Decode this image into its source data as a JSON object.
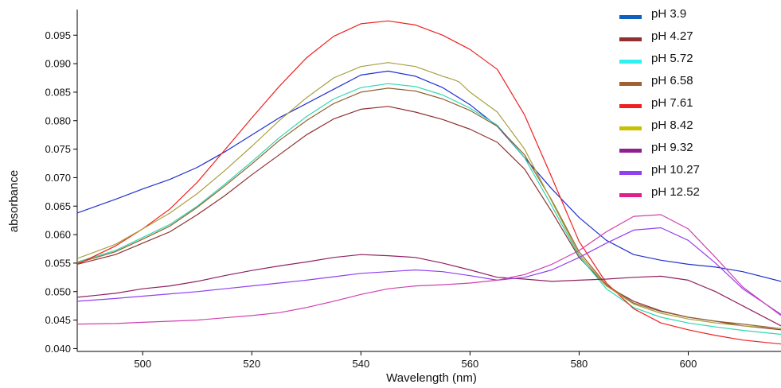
{
  "chart_data": {
    "type": "line",
    "title": "",
    "xlabel": "Wavelength (nm)",
    "ylabel": "absorbance",
    "xlim": [
      488,
      617
    ],
    "ylim": [
      0.0395,
      0.0995
    ],
    "xticks": [
      500,
      520,
      540,
      560,
      580,
      600
    ],
    "yticks": [
      "0.040",
      "0.045",
      "0.050",
      "0.055",
      "0.060",
      "0.065",
      "0.070",
      "0.075",
      "0.080",
      "0.085",
      "0.090",
      "0.095"
    ],
    "grid": false,
    "legend_position": "top-right",
    "series": [
      {
        "name": "pH  3.9",
        "color": "#2030d0",
        "legend_color": "#1060c0",
        "points": [
          [
            488,
            0.0638
          ],
          [
            495,
            0.0662
          ],
          [
            500,
            0.068
          ],
          [
            505,
            0.0697
          ],
          [
            510,
            0.0718
          ],
          [
            515,
            0.0745
          ],
          [
            520,
            0.0775
          ],
          [
            525,
            0.0805
          ],
          [
            530,
            0.083
          ],
          [
            535,
            0.0855
          ],
          [
            540,
            0.088
          ],
          [
            545,
            0.0887
          ],
          [
            550,
            0.0878
          ],
          [
            555,
            0.0858
          ],
          [
            560,
            0.0828
          ],
          [
            565,
            0.079
          ],
          [
            570,
            0.0735
          ],
          [
            575,
            0.068
          ],
          [
            580,
            0.063
          ],
          [
            585,
            0.059
          ],
          [
            590,
            0.0565
          ],
          [
            595,
            0.0555
          ],
          [
            600,
            0.0548
          ],
          [
            605,
            0.0543
          ],
          [
            610,
            0.0535
          ],
          [
            617,
            0.0518
          ]
        ]
      },
      {
        "name": "pH  4.27",
        "color": "#903030",
        "legend_color": "#903030",
        "points": [
          [
            488,
            0.0548
          ],
          [
            495,
            0.0565
          ],
          [
            500,
            0.0585
          ],
          [
            505,
            0.0605
          ],
          [
            510,
            0.0635
          ],
          [
            515,
            0.0668
          ],
          [
            520,
            0.0705
          ],
          [
            525,
            0.074
          ],
          [
            530,
            0.0775
          ],
          [
            535,
            0.0803
          ],
          [
            540,
            0.082
          ],
          [
            545,
            0.0825
          ],
          [
            550,
            0.0815
          ],
          [
            555,
            0.0802
          ],
          [
            560,
            0.0785
          ],
          [
            565,
            0.0762
          ],
          [
            570,
            0.0715
          ],
          [
            575,
            0.064
          ],
          [
            580,
            0.056
          ],
          [
            585,
            0.051
          ],
          [
            590,
            0.0483
          ],
          [
            595,
            0.0466
          ],
          [
            600,
            0.0455
          ],
          [
            605,
            0.0448
          ],
          [
            610,
            0.044
          ],
          [
            617,
            0.0433
          ]
        ]
      },
      {
        "name": "pH  5.72",
        "color": "#30d8b0",
        "legend_color": "#30f0f0",
        "points": [
          [
            488,
            0.0552
          ],
          [
            495,
            0.0572
          ],
          [
            500,
            0.0595
          ],
          [
            505,
            0.0618
          ],
          [
            510,
            0.065
          ],
          [
            515,
            0.0688
          ],
          [
            520,
            0.0728
          ],
          [
            525,
            0.077
          ],
          [
            530,
            0.0807
          ],
          [
            535,
            0.0838
          ],
          [
            540,
            0.0858
          ],
          [
            545,
            0.0865
          ],
          [
            550,
            0.086
          ],
          [
            555,
            0.0845
          ],
          [
            560,
            0.0822
          ],
          [
            565,
            0.0792
          ],
          [
            570,
            0.0735
          ],
          [
            575,
            0.065
          ],
          [
            580,
            0.0562
          ],
          [
            585,
            0.0505
          ],
          [
            590,
            0.0472
          ],
          [
            595,
            0.0455
          ],
          [
            600,
            0.0445
          ],
          [
            605,
            0.0438
          ],
          [
            610,
            0.0432
          ],
          [
            617,
            0.0425
          ]
        ]
      },
      {
        "name": "pH  6.58",
        "color": "#906030",
        "legend_color": "#a06030",
        "points": [
          [
            488,
            0.055
          ],
          [
            495,
            0.057
          ],
          [
            500,
            0.0592
          ],
          [
            505,
            0.0615
          ],
          [
            510,
            0.0648
          ],
          [
            515,
            0.0685
          ],
          [
            520,
            0.0724
          ],
          [
            525,
            0.0765
          ],
          [
            530,
            0.08
          ],
          [
            535,
            0.083
          ],
          [
            540,
            0.085
          ],
          [
            545,
            0.0857
          ],
          [
            550,
            0.0852
          ],
          [
            555,
            0.0838
          ],
          [
            560,
            0.0818
          ],
          [
            565,
            0.079
          ],
          [
            570,
            0.074
          ],
          [
            575,
            0.066
          ],
          [
            580,
            0.057
          ],
          [
            585,
            0.0512
          ],
          [
            590,
            0.048
          ],
          [
            595,
            0.0465
          ],
          [
            600,
            0.0455
          ],
          [
            605,
            0.0448
          ],
          [
            610,
            0.0443
          ],
          [
            617,
            0.0435
          ]
        ]
      },
      {
        "name": "pH  7.61",
        "color": "#f02020",
        "legend_color": "#f02020",
        "points": [
          [
            488,
            0.0548
          ],
          [
            495,
            0.058
          ],
          [
            500,
            0.061
          ],
          [
            505,
            0.0645
          ],
          [
            510,
            0.0692
          ],
          [
            515,
            0.0748
          ],
          [
            520,
            0.0805
          ],
          [
            525,
            0.086
          ],
          [
            530,
            0.091
          ],
          [
            535,
            0.0948
          ],
          [
            540,
            0.097
          ],
          [
            545,
            0.0975
          ],
          [
            550,
            0.0968
          ],
          [
            555,
            0.095
          ],
          [
            560,
            0.0925
          ],
          [
            565,
            0.089
          ],
          [
            570,
            0.081
          ],
          [
            575,
            0.07
          ],
          [
            580,
            0.0588
          ],
          [
            585,
            0.0515
          ],
          [
            590,
            0.047
          ],
          [
            595,
            0.0445
          ],
          [
            600,
            0.0433
          ],
          [
            605,
            0.0423
          ],
          [
            610,
            0.0415
          ],
          [
            617,
            0.0408
          ]
        ]
      },
      {
        "name": "pH  8.42",
        "color": "#a8a040",
        "legend_color": "#c8c000",
        "points": [
          [
            488,
            0.0558
          ],
          [
            495,
            0.0583
          ],
          [
            500,
            0.061
          ],
          [
            505,
            0.0638
          ],
          [
            510,
            0.0672
          ],
          [
            515,
            0.0712
          ],
          [
            520,
            0.0755
          ],
          [
            525,
            0.08
          ],
          [
            530,
            0.084
          ],
          [
            535,
            0.0875
          ],
          [
            540,
            0.0895
          ],
          [
            545,
            0.0902
          ],
          [
            550,
            0.0895
          ],
          [
            555,
            0.0878
          ],
          [
            557,
            0.0872
          ],
          [
            558,
            0.0868
          ],
          [
            560,
            0.085
          ],
          [
            565,
            0.0815
          ],
          [
            570,
            0.075
          ],
          [
            575,
            0.0658
          ],
          [
            580,
            0.0565
          ],
          [
            585,
            0.051
          ],
          [
            590,
            0.0478
          ],
          [
            595,
            0.0462
          ],
          [
            600,
            0.0452
          ],
          [
            605,
            0.0445
          ],
          [
            610,
            0.044
          ],
          [
            617,
            0.0435
          ]
        ]
      },
      {
        "name": "pH  9.32",
        "color": "#902060",
        "legend_color": "#902090",
        "points": [
          [
            488,
            0.049
          ],
          [
            495,
            0.0497
          ],
          [
            500,
            0.0505
          ],
          [
            505,
            0.051
          ],
          [
            510,
            0.0518
          ],
          [
            515,
            0.0528
          ],
          [
            520,
            0.0537
          ],
          [
            525,
            0.0545
          ],
          [
            530,
            0.0552
          ],
          [
            535,
            0.056
          ],
          [
            540,
            0.0565
          ],
          [
            545,
            0.0563
          ],
          [
            550,
            0.056
          ],
          [
            555,
            0.055
          ],
          [
            560,
            0.0538
          ],
          [
            565,
            0.0525
          ],
          [
            570,
            0.0522
          ],
          [
            575,
            0.0518
          ],
          [
            580,
            0.052
          ],
          [
            585,
            0.0522
          ],
          [
            590,
            0.0525
          ],
          [
            595,
            0.0527
          ],
          [
            600,
            0.052
          ],
          [
            605,
            0.05
          ],
          [
            610,
            0.0475
          ],
          [
            617,
            0.044
          ]
        ]
      },
      {
        "name": "pH  10.27",
        "color": "#9040f0",
        "legend_color": "#9040f0",
        "points": [
          [
            488,
            0.0483
          ],
          [
            495,
            0.0488
          ],
          [
            500,
            0.0492
          ],
          [
            505,
            0.0496
          ],
          [
            510,
            0.05
          ],
          [
            515,
            0.0505
          ],
          [
            520,
            0.051
          ],
          [
            525,
            0.0515
          ],
          [
            530,
            0.052
          ],
          [
            535,
            0.0526
          ],
          [
            540,
            0.0532
          ],
          [
            545,
            0.0535
          ],
          [
            550,
            0.0538
          ],
          [
            555,
            0.0535
          ],
          [
            560,
            0.0528
          ],
          [
            565,
            0.052
          ],
          [
            570,
            0.0525
          ],
          [
            575,
            0.0538
          ],
          [
            580,
            0.056
          ],
          [
            585,
            0.0585
          ],
          [
            590,
            0.0608
          ],
          [
            595,
            0.0612
          ],
          [
            600,
            0.059
          ],
          [
            605,
            0.055
          ],
          [
            610,
            0.0505
          ],
          [
            617,
            0.046
          ]
        ]
      },
      {
        "name": "pH  12.52",
        "color": "#d040b0",
        "legend_color": "#e0208a",
        "points": [
          [
            488,
            0.0443
          ],
          [
            495,
            0.0444
          ],
          [
            500,
            0.0446
          ],
          [
            505,
            0.0448
          ],
          [
            510,
            0.045
          ],
          [
            515,
            0.0454
          ],
          [
            520,
            0.0458
          ],
          [
            525,
            0.0463
          ],
          [
            530,
            0.0472
          ],
          [
            535,
            0.0483
          ],
          [
            540,
            0.0495
          ],
          [
            545,
            0.0505
          ],
          [
            550,
            0.051
          ],
          [
            555,
            0.0512
          ],
          [
            560,
            0.0515
          ],
          [
            565,
            0.052
          ],
          [
            570,
            0.053
          ],
          [
            575,
            0.0548
          ],
          [
            580,
            0.0572
          ],
          [
            585,
            0.0605
          ],
          [
            590,
            0.0632
          ],
          [
            595,
            0.0635
          ],
          [
            600,
            0.061
          ],
          [
            605,
            0.056
          ],
          [
            610,
            0.0508
          ],
          [
            617,
            0.0458
          ]
        ]
      }
    ]
  }
}
